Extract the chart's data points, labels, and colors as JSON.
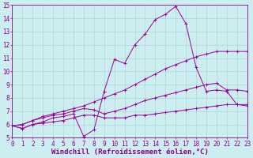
{
  "background_color": "#cceef0",
  "line_color": "#990099",
  "grid_color": "#aacccc",
  "xlim": [
    0,
    23
  ],
  "ylim": [
    5,
    15
  ],
  "xticks": [
    0,
    1,
    2,
    3,
    4,
    5,
    6,
    7,
    8,
    9,
    10,
    11,
    12,
    13,
    14,
    15,
    16,
    17,
    18,
    19,
    20,
    21,
    22,
    23
  ],
  "yticks": [
    5,
    6,
    7,
    8,
    9,
    10,
    11,
    12,
    13,
    14,
    15
  ],
  "xlabel": "Windchill (Refroidissement éolien,°C)",
  "font_color": "#880088",
  "tick_fontsize": 5.5,
  "label_fontsize": 6.5,
  "lines": [
    {
      "x": [
        0,
        1,
        2,
        3,
        4,
        5,
        6,
        7,
        8,
        9,
        10,
        11,
        12,
        13,
        14,
        15,
        16,
        17,
        18,
        19,
        20,
        21,
        22,
        23
      ],
      "y": [
        5.9,
        5.7,
        6.0,
        6.2,
        6.5,
        6.6,
        6.8,
        5.1,
        5.6,
        8.5,
        10.9,
        10.6,
        12.0,
        12.8,
        13.9,
        14.3,
        14.9,
        13.6,
        10.3,
        8.5,
        8.6,
        8.5,
        7.5,
        7.5
      ]
    },
    {
      "x": [
        0,
        1,
        2,
        3,
        4,
        5,
        6,
        7,
        8,
        9,
        10,
        11,
        12,
        13,
        14,
        15,
        16,
        17,
        18,
        19,
        20,
        21,
        22,
        23
      ],
      "y": [
        5.9,
        6.0,
        6.3,
        6.6,
        6.8,
        7.0,
        7.2,
        7.4,
        7.7,
        8.0,
        8.3,
        8.6,
        9.0,
        9.4,
        9.8,
        10.2,
        10.5,
        10.8,
        11.1,
        11.3,
        11.5,
        11.5,
        11.5,
        11.5
      ]
    },
    {
      "x": [
        0,
        1,
        2,
        3,
        4,
        5,
        6,
        7,
        8,
        9,
        10,
        11,
        12,
        13,
        14,
        15,
        16,
        17,
        18,
        19,
        20,
        21,
        22,
        23
      ],
      "y": [
        5.9,
        5.7,
        6.0,
        6.1,
        6.2,
        6.3,
        6.5,
        6.7,
        6.7,
        6.5,
        6.5,
        6.5,
        6.7,
        6.7,
        6.8,
        6.9,
        7.0,
        7.1,
        7.2,
        7.3,
        7.4,
        7.5,
        7.5,
        7.4
      ]
    },
    {
      "x": [
        0,
        1,
        2,
        3,
        4,
        5,
        6,
        7,
        8,
        9,
        10,
        11,
        12,
        13,
        14,
        15,
        16,
        17,
        18,
        19,
        20,
        21,
        22,
        23
      ],
      "y": [
        5.9,
        6.0,
        6.3,
        6.5,
        6.7,
        6.8,
        7.0,
        7.2,
        7.1,
        6.8,
        7.0,
        7.2,
        7.5,
        7.8,
        8.0,
        8.2,
        8.4,
        8.6,
        8.8,
        9.0,
        9.1,
        8.6,
        8.6,
        8.5
      ]
    }
  ]
}
